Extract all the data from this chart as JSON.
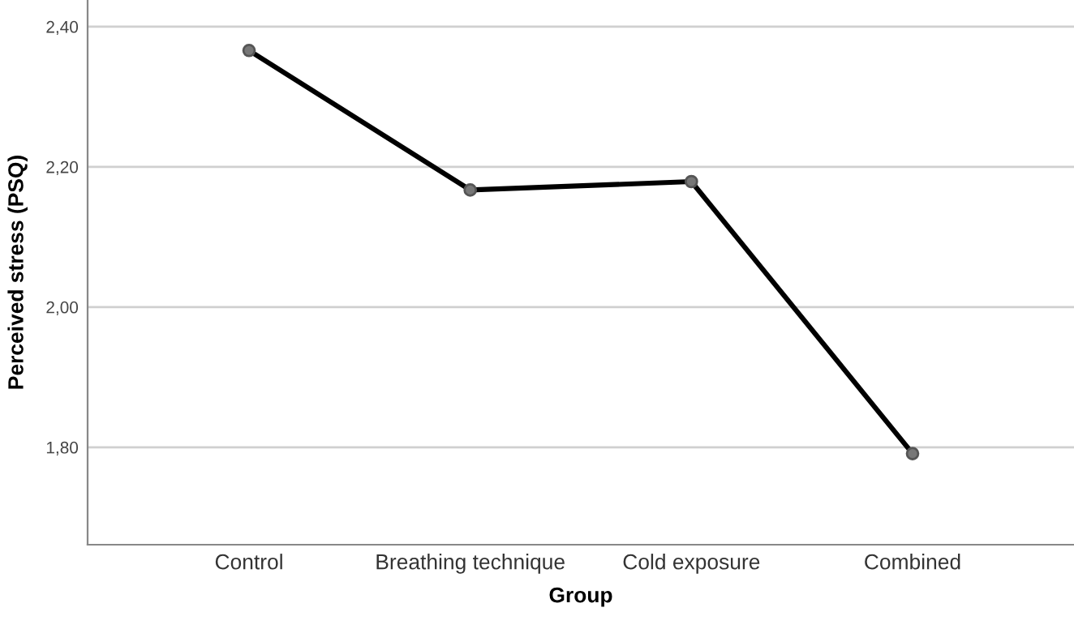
{
  "chart_data": {
    "type": "line",
    "xlabel": "Group",
    "ylabel": "Perceived stress (PSQ)",
    "categories": [
      "Control",
      "Breathing technique",
      "Cold exposure",
      "Combined"
    ],
    "series": [
      {
        "color": "#000000",
        "values": [
          2.366,
          2.167,
          2.179,
          1.791
        ]
      }
    ],
    "ylim": [
      1.661,
      2.438
    ],
    "yticks": [
      {
        "value": 1.8,
        "label": "1,80"
      },
      {
        "value": 2.0,
        "label": "2,00"
      },
      {
        "value": 2.2,
        "label": "2,20"
      },
      {
        "value": 2.4,
        "label": "2,40"
      }
    ],
    "grid": "y",
    "marker": "circle",
    "line_style": "solid",
    "legend": false
  }
}
